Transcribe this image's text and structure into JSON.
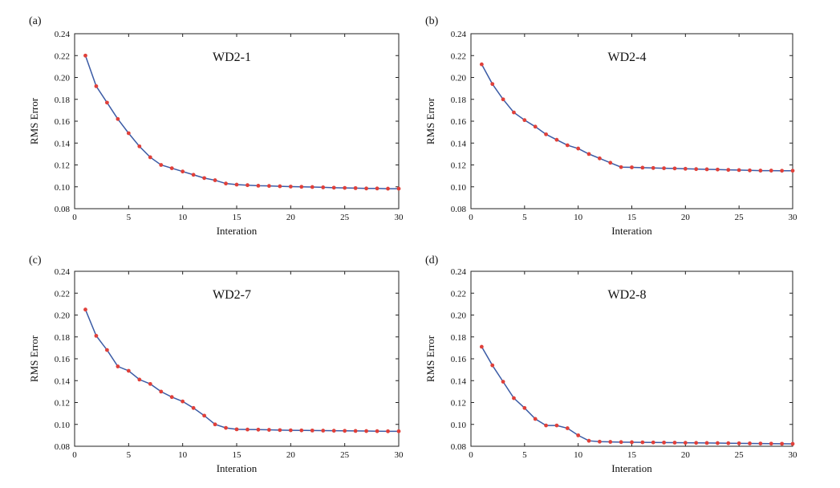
{
  "colors": {
    "line": "#3b5ba5",
    "marker": "#e0403a",
    "axis": "#222222"
  },
  "chart_data": [
    {
      "type": "line",
      "panel_label": "(a)",
      "title": "WD2-1",
      "xlabel": "Interation",
      "ylabel": "RMS Error",
      "xlim": [
        0,
        30
      ],
      "ylim": [
        0.08,
        0.24
      ],
      "xticks": [
        "0",
        "5",
        "10",
        "15",
        "20",
        "25",
        "30"
      ],
      "yticks": [
        "0.08",
        "0.10",
        "0.12",
        "0.14",
        "0.16",
        "0.18",
        "0.20",
        "0.22",
        "0.24"
      ],
      "x": [
        1,
        2,
        3,
        4,
        5,
        6,
        7,
        8,
        9,
        10,
        11,
        12,
        13,
        14,
        15,
        16,
        17,
        18,
        19,
        20,
        21,
        22,
        23,
        24,
        25,
        26,
        27,
        28,
        29,
        30
      ],
      "values": [
        0.22,
        0.192,
        0.177,
        0.162,
        0.149,
        0.137,
        0.127,
        0.12,
        0.117,
        0.114,
        0.111,
        0.108,
        0.106,
        0.103,
        0.102,
        0.1015,
        0.101,
        0.1008,
        0.1005,
        0.1002,
        0.1,
        0.0998,
        0.0995,
        0.0992,
        0.099,
        0.0988,
        0.0985,
        0.0985,
        0.0983,
        0.0983
      ]
    },
    {
      "type": "line",
      "panel_label": "(b)",
      "title": "WD2-4",
      "xlabel": "Interation",
      "ylabel": "RMS Error",
      "xlim": [
        0,
        30
      ],
      "ylim": [
        0.08,
        0.24
      ],
      "xticks": [
        "0",
        "5",
        "10",
        "15",
        "20",
        "25",
        "30"
      ],
      "yticks": [
        "0.08",
        "0.10",
        "0.12",
        "0.14",
        "0.16",
        "0.18",
        "0.20",
        "0.22",
        "0.24"
      ],
      "x": [
        1,
        2,
        3,
        4,
        5,
        6,
        7,
        8,
        9,
        10,
        11,
        12,
        13,
        14,
        15,
        16,
        17,
        18,
        19,
        20,
        21,
        22,
        23,
        24,
        25,
        26,
        27,
        28,
        29,
        30
      ],
      "values": [
        0.212,
        0.194,
        0.18,
        0.168,
        0.161,
        0.155,
        0.148,
        0.143,
        0.138,
        0.135,
        0.13,
        0.126,
        0.122,
        0.118,
        0.1178,
        0.1175,
        0.1172,
        0.117,
        0.1168,
        0.1165,
        0.1162,
        0.116,
        0.1158,
        0.1155,
        0.1153,
        0.115,
        0.1148,
        0.1148,
        0.1147,
        0.1147
      ]
    },
    {
      "type": "line",
      "panel_label": "(c)",
      "title": "WD2-7",
      "xlabel": "Interation",
      "ylabel": "RMS Error",
      "xlim": [
        0,
        30
      ],
      "ylim": [
        0.08,
        0.24
      ],
      "xticks": [
        "0",
        "5",
        "10",
        "15",
        "20",
        "25",
        "30"
      ],
      "yticks": [
        "0.08",
        "0.10",
        "0.12",
        "0.14",
        "0.16",
        "0.18",
        "0.20",
        "0.22",
        "0.24"
      ],
      "x": [
        1,
        2,
        3,
        4,
        5,
        6,
        7,
        8,
        9,
        10,
        11,
        12,
        13,
        14,
        15,
        16,
        17,
        18,
        19,
        20,
        21,
        22,
        23,
        24,
        25,
        26,
        27,
        28,
        29,
        30
      ],
      "values": [
        0.205,
        0.181,
        0.168,
        0.153,
        0.149,
        0.141,
        0.137,
        0.13,
        0.125,
        0.121,
        0.115,
        0.108,
        0.1,
        0.0968,
        0.0955,
        0.0953,
        0.0952,
        0.095,
        0.0948,
        0.0946,
        0.0945,
        0.0944,
        0.0943,
        0.0942,
        0.0941,
        0.094,
        0.0939,
        0.0938,
        0.0937,
        0.0937
      ]
    },
    {
      "type": "line",
      "panel_label": "(d)",
      "title": "WD2-8",
      "xlabel": "Interation",
      "ylabel": "RMS Error",
      "xlim": [
        0,
        30
      ],
      "ylim": [
        0.08,
        0.24
      ],
      "xticks": [
        "0",
        "5",
        "10",
        "15",
        "20",
        "25",
        "30"
      ],
      "yticks": [
        "0.08",
        "0.10",
        "0.12",
        "0.14",
        "0.16",
        "0.18",
        "0.20",
        "0.22",
        "0.24"
      ],
      "x": [
        1,
        2,
        3,
        4,
        5,
        6,
        7,
        8,
        9,
        10,
        11,
        12,
        13,
        14,
        15,
        16,
        17,
        18,
        19,
        20,
        21,
        22,
        23,
        24,
        25,
        26,
        27,
        28,
        29,
        30
      ],
      "values": [
        0.171,
        0.154,
        0.139,
        0.124,
        0.115,
        0.105,
        0.099,
        0.099,
        0.0965,
        0.09,
        0.085,
        0.0842,
        0.084,
        0.0838,
        0.0837,
        0.0836,
        0.0835,
        0.0834,
        0.0833,
        0.0832,
        0.0831,
        0.083,
        0.0829,
        0.0828,
        0.0827,
        0.0826,
        0.0825,
        0.0824,
        0.0823,
        0.0822
      ]
    }
  ]
}
